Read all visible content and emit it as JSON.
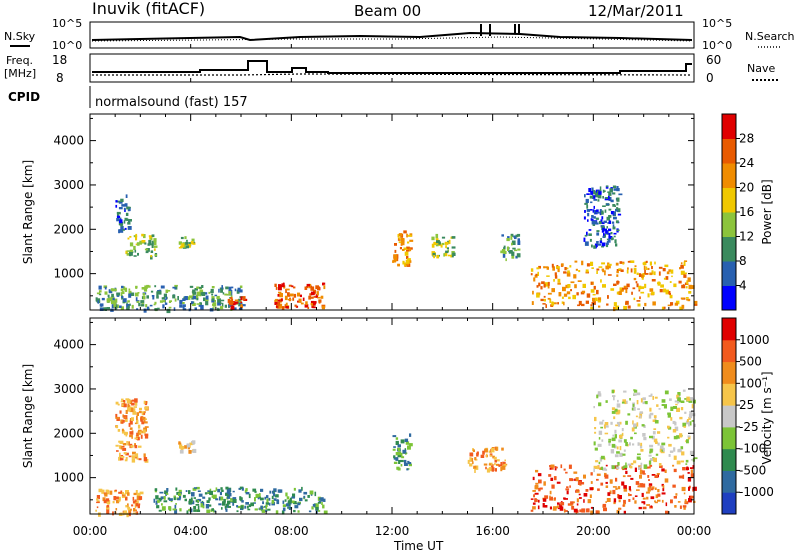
{
  "header": {
    "station": "Inuvik (fitACF)",
    "beam": "Beam 00",
    "date": "12/Mar/2011"
  },
  "top_panels": {
    "nsky_label": "N.Sky",
    "nsky_ticks": [
      "10^5",
      "10^0"
    ],
    "nsearch_label": "N.Search",
    "nsearch_ticks": [
      "10^5",
      "10^0"
    ],
    "freq_label": "Freq.",
    "freq_unit": "[MHz]",
    "freq_ticks": [
      "18",
      "8"
    ],
    "nave_label": "Nave",
    "nave_ticks": [
      "60",
      "0"
    ],
    "cpid_label": "CPID",
    "cpid_text": "normalsound (fast) 157"
  },
  "chart_data": [
    {
      "type": "heatmap",
      "name": "power",
      "ylabel": "Slant Range [km]",
      "ylim": [
        180,
        4600
      ],
      "yticks": [
        "1000",
        "2000",
        "3000",
        "4000"
      ],
      "xlim": [
        0,
        24
      ],
      "colorbar": {
        "label": "Power [dB]",
        "ticks": [
          "4",
          "8",
          "12",
          "16",
          "20",
          "24",
          "28"
        ],
        "colors": [
          "#0000ff",
          "#2860b0",
          "#3a8a5e",
          "#8cc43c",
          "#f0c800",
          "#f08c00",
          "#e85a00",
          "#e00000"
        ]
      },
      "regions": [
        {
          "t0": 0.2,
          "t1": 6.1,
          "r0": 200,
          "r1": 750,
          "level": 2
        },
        {
          "t0": 1.0,
          "t1": 1.6,
          "r0": 2000,
          "r1": 2800,
          "level": 1
        },
        {
          "t0": 1.4,
          "t1": 2.6,
          "r0": 1400,
          "r1": 1900,
          "level": 3
        },
        {
          "t0": 3.5,
          "t1": 4.1,
          "r0": 1600,
          "r1": 1850,
          "level": 3
        },
        {
          "t0": 5.4,
          "t1": 6.1,
          "r0": 250,
          "r1": 500,
          "level": 6
        },
        {
          "t0": 7.3,
          "t1": 9.3,
          "r0": 250,
          "r1": 800,
          "level": 6
        },
        {
          "t0": 12.0,
          "t1": 12.7,
          "r0": 1200,
          "r1": 2000,
          "level": 5
        },
        {
          "t0": 13.5,
          "t1": 14.4,
          "r0": 1400,
          "r1": 1900,
          "level": 3
        },
        {
          "t0": 16.3,
          "t1": 17.0,
          "r0": 1300,
          "r1": 1900,
          "level": 2
        },
        {
          "t0": 17.5,
          "t1": 24.0,
          "r0": 250,
          "r1": 1300,
          "level": 5
        },
        {
          "t0": 19.6,
          "t1": 21.0,
          "r0": 1600,
          "r1": 3000,
          "level": 1
        }
      ]
    },
    {
      "type": "heatmap",
      "name": "velocity",
      "ylabel": "Slant Range [km]",
      "ylim": [
        180,
        4600
      ],
      "yticks": [
        "1000",
        "2000",
        "3000",
        "4000"
      ],
      "xlim": [
        0,
        24
      ],
      "xticks": [
        "00:00",
        "04:00",
        "08:00",
        "12:00",
        "16:00",
        "20:00",
        "00:00"
      ],
      "xlabel": "Time UT",
      "colorbar": {
        "label": "Velocity [m s⁻¹]",
        "ticks": [
          "1000",
          "500",
          "100",
          "25",
          "-25",
          "-100",
          "-500",
          "-1000"
        ],
        "colors": [
          "#1f3fc0",
          "#2f6aa0",
          "#2f8a4f",
          "#7cc437",
          "#c8c8c8",
          "#f6c54a",
          "#f08c1c",
          "#f25a1e",
          "#e00000"
        ]
      },
      "regions": [
        {
          "t0": 0.2,
          "t1": 2.0,
          "r0": 200,
          "r1": 750,
          "level": 6
        },
        {
          "t0": 1.0,
          "t1": 2.2,
          "r0": 1400,
          "r1": 2800,
          "level": 6
        },
        {
          "t0": 3.5,
          "t1": 4.1,
          "r0": 1600,
          "r1": 1850,
          "level": 5
        },
        {
          "t0": 2.5,
          "t1": 9.3,
          "r0": 250,
          "r1": 800,
          "level": 2
        },
        {
          "t0": 12.0,
          "t1": 12.7,
          "r0": 1200,
          "r1": 2000,
          "level": 2
        },
        {
          "t0": 15.0,
          "t1": 16.5,
          "r0": 1200,
          "r1": 1700,
          "level": 6
        },
        {
          "t0": 17.5,
          "t1": 24.0,
          "r0": 250,
          "r1": 1300,
          "level": 7
        },
        {
          "t0": 20.0,
          "t1": 24.0,
          "r0": 1200,
          "r1": 3000,
          "level": 4
        }
      ]
    }
  ]
}
